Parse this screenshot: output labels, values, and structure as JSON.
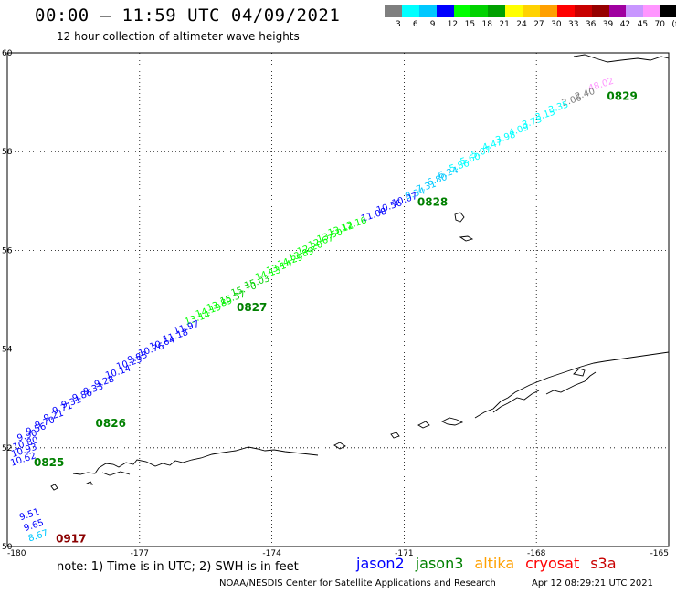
{
  "header": {
    "title": "00:00 – 11:59 UTC 04/09/2021",
    "subtitle": "12 hour collection of altimeter wave heights"
  },
  "colorbar": {
    "colors": [
      "#7f7f7f",
      "#00ffff",
      "#00c8ff",
      "#0000ff",
      "#00ff00",
      "#00d200",
      "#00a000",
      "#ffff00",
      "#ffd200",
      "#ffa000",
      "#ff0000",
      "#c80000",
      "#960000",
      "#a000a0",
      "#c896ff",
      "#ff96ff",
      "#000000"
    ],
    "labels": [
      "3",
      "6",
      "9",
      "12",
      "15",
      "18",
      "21",
      "24",
      "27",
      "30",
      "33",
      "36",
      "39",
      "42",
      "45",
      "70",
      "(ft)"
    ]
  },
  "map": {
    "lon_range": [
      -180,
      -165
    ],
    "lat_range": [
      50,
      60
    ],
    "x_ticks": [
      "-180",
      "-177",
      "-174",
      "-171",
      "-168",
      "-165"
    ],
    "y_ticks": [
      "60",
      "58",
      "56",
      "54",
      "52",
      "50"
    ]
  },
  "wave_heights": [
    {
      "text": "48.02",
      "lon": -166.8,
      "lat": 59.22,
      "color": "#ff96ff"
    },
    {
      "text": "2.40",
      "lon": -167.1,
      "lat": 59.05,
      "color": "#7f7f7f"
    },
    {
      "text": "2.06",
      "lon": -167.4,
      "lat": 58.92,
      "color": "#7f7f7f"
    },
    {
      "text": "3.35",
      "lon": -167.7,
      "lat": 58.78,
      "color": "#00ffff"
    },
    {
      "text": "3.15",
      "lon": -168.0,
      "lat": 58.63,
      "color": "#00ffff"
    },
    {
      "text": "3.75",
      "lon": -168.3,
      "lat": 58.48,
      "color": "#00ffff"
    },
    {
      "text": "4.09",
      "lon": -168.6,
      "lat": 58.32,
      "color": "#00ffff"
    },
    {
      "text": "3.98",
      "lon": -168.9,
      "lat": 58.17,
      "color": "#00ffff"
    },
    {
      "text": "4.47",
      "lon": -169.2,
      "lat": 58.02,
      "color": "#00ffff"
    },
    {
      "text": "5.07",
      "lon": -169.45,
      "lat": 57.87,
      "color": "#00ffff"
    },
    {
      "text": "5.60",
      "lon": -169.7,
      "lat": 57.73,
      "color": "#00ffff"
    },
    {
      "text": "5.86",
      "lon": -169.95,
      "lat": 57.59,
      "color": "#00ffff"
    },
    {
      "text": "6.24",
      "lon": -170.2,
      "lat": 57.45,
      "color": "#00c8ff"
    },
    {
      "text": "6.80",
      "lon": -170.45,
      "lat": 57.31,
      "color": "#00c8ff"
    },
    {
      "text": "7.31",
      "lon": -170.7,
      "lat": 57.17,
      "color": "#00c8ff"
    },
    {
      "text": "9.34",
      "lon": -170.95,
      "lat": 57.03,
      "color": "#00c8ff"
    },
    {
      "text": "10.07",
      "lon": -171.25,
      "lat": 56.89,
      "color": "#0000ff"
    },
    {
      "text": "10.56",
      "lon": -171.6,
      "lat": 56.75,
      "color": "#0000ff"
    },
    {
      "text": "11.08",
      "lon": -171.95,
      "lat": 56.58,
      "color": "#0000ff"
    },
    {
      "text": "12.16",
      "lon": -172.4,
      "lat": 56.4,
      "color": "#00ff00"
    },
    {
      "text": "13.12",
      "lon": -172.7,
      "lat": 56.29,
      "color": "#00ff00"
    },
    {
      "text": "13.50",
      "lon": -172.95,
      "lat": 56.16,
      "color": "#00ff00"
    },
    {
      "text": "12.67",
      "lon": -173.15,
      "lat": 56.04,
      "color": "#00ff00"
    },
    {
      "text": "12.20",
      "lon": -173.4,
      "lat": 55.91,
      "color": "#00ff00"
    },
    {
      "text": "13.89",
      "lon": -173.6,
      "lat": 55.78,
      "color": "#00ff00"
    },
    {
      "text": "14.29",
      "lon": -173.85,
      "lat": 55.65,
      "color": "#00ff00"
    },
    {
      "text": "13.14",
      "lon": -174.1,
      "lat": 55.52,
      "color": "#00ff00"
    },
    {
      "text": "14.13",
      "lon": -174.35,
      "lat": 55.39,
      "color": "#00ff00"
    },
    {
      "text": "15.03",
      "lon": -174.6,
      "lat": 55.22,
      "color": "#00d200"
    },
    {
      "text": "15.70",
      "lon": -174.9,
      "lat": 55.07,
      "color": "#00d200"
    },
    {
      "text": "15.37",
      "lon": -175.15,
      "lat": 54.9,
      "color": "#00d200"
    },
    {
      "text": "13.89",
      "lon": -175.45,
      "lat": 54.77,
      "color": "#00ff00"
    },
    {
      "text": "14.19",
      "lon": -175.7,
      "lat": 54.64,
      "color": "#00ff00"
    },
    {
      "text": "13.14",
      "lon": -175.95,
      "lat": 54.49,
      "color": "#00ff00"
    },
    {
      "text": "11.97",
      "lon": -176.2,
      "lat": 54.3,
      "color": "#0000ff"
    },
    {
      "text": "11.18",
      "lon": -176.45,
      "lat": 54.13,
      "color": "#0000ff"
    },
    {
      "text": "10.64",
      "lon": -176.75,
      "lat": 53.98,
      "color": "#0000ff"
    },
    {
      "text": "10.76",
      "lon": -177.0,
      "lat": 53.85,
      "color": "#0000ff"
    },
    {
      "text": "9.83",
      "lon": -177.25,
      "lat": 53.71,
      "color": "#0000ff"
    },
    {
      "text": "10.23",
      "lon": -177.5,
      "lat": 53.58,
      "color": "#0000ff"
    },
    {
      "text": "10.14",
      "lon": -177.75,
      "lat": 53.4,
      "color": "#0000ff"
    },
    {
      "text": "9.28",
      "lon": -178.0,
      "lat": 53.22,
      "color": "#0000ff"
    },
    {
      "text": "9.33",
      "lon": -178.25,
      "lat": 53.07,
      "color": "#0000ff"
    },
    {
      "text": "9.86",
      "lon": -178.5,
      "lat": 52.94,
      "color": "#0000ff"
    },
    {
      "text": "9.31",
      "lon": -178.75,
      "lat": 52.8,
      "color": "#0000ff"
    },
    {
      "text": "9.71",
      "lon": -178.95,
      "lat": 52.68,
      "color": "#0000ff"
    },
    {
      "text": "9.21",
      "lon": -179.15,
      "lat": 52.53,
      "color": "#0000ff"
    },
    {
      "text": "9.70",
      "lon": -179.35,
      "lat": 52.39,
      "color": "#0000ff"
    },
    {
      "text": "9.56",
      "lon": -179.55,
      "lat": 52.26,
      "color": "#0000ff"
    },
    {
      "text": "9.90",
      "lon": -179.75,
      "lat": 52.13,
      "color": "#0000ff"
    },
    {
      "text": "10.80",
      "lon": -179.85,
      "lat": 51.95,
      "color": "#0000ff"
    },
    {
      "text": "10.93",
      "lon": -179.88,
      "lat": 51.81,
      "color": "#0000ff"
    },
    {
      "text": "10.62",
      "lon": -179.9,
      "lat": 51.63,
      "color": "#0000ff"
    },
    {
      "text": "9.51",
      "lon": -179.7,
      "lat": 50.53,
      "color": "#0000ff"
    },
    {
      "text": "9.65",
      "lon": -179.6,
      "lat": 50.31,
      "color": "#0000ff"
    },
    {
      "text": "8.67",
      "lon": -179.5,
      "lat": 50.1,
      "color": "#00c8ff"
    }
  ],
  "time_labels": [
    {
      "text": "0829",
      "lon": -166.4,
      "lat": 59.05,
      "color": "#008000"
    },
    {
      "text": "0828",
      "lon": -170.7,
      "lat": 56.9,
      "color": "#008000"
    },
    {
      "text": "0827",
      "lon": -174.8,
      "lat": 54.77,
      "color": "#008000"
    },
    {
      "text": "0826",
      "lon": -178.0,
      "lat": 52.42,
      "color": "#008000"
    },
    {
      "text": "0825",
      "lon": -179.4,
      "lat": 51.63,
      "color": "#008000"
    },
    {
      "text": "0917",
      "lon": -178.9,
      "lat": 50.08,
      "color": "#8b0000"
    }
  ],
  "note": "note:  1) Time is in UTC;  2) SWH is in feet",
  "legend": [
    {
      "name": "jason2",
      "color": "#0000ff"
    },
    {
      "name": "jason3",
      "color": "#008000"
    },
    {
      "name": "altika",
      "color": "#ffa000"
    },
    {
      "name": "cryosat",
      "color": "#ff0000"
    },
    {
      "name": "s3a",
      "color": "#c80000"
    }
  ],
  "credit": "NOAA/NESDIS Center for Satellite Applications and Research",
  "credit_time": "Apr 12 08:29:21 UTC 2021"
}
